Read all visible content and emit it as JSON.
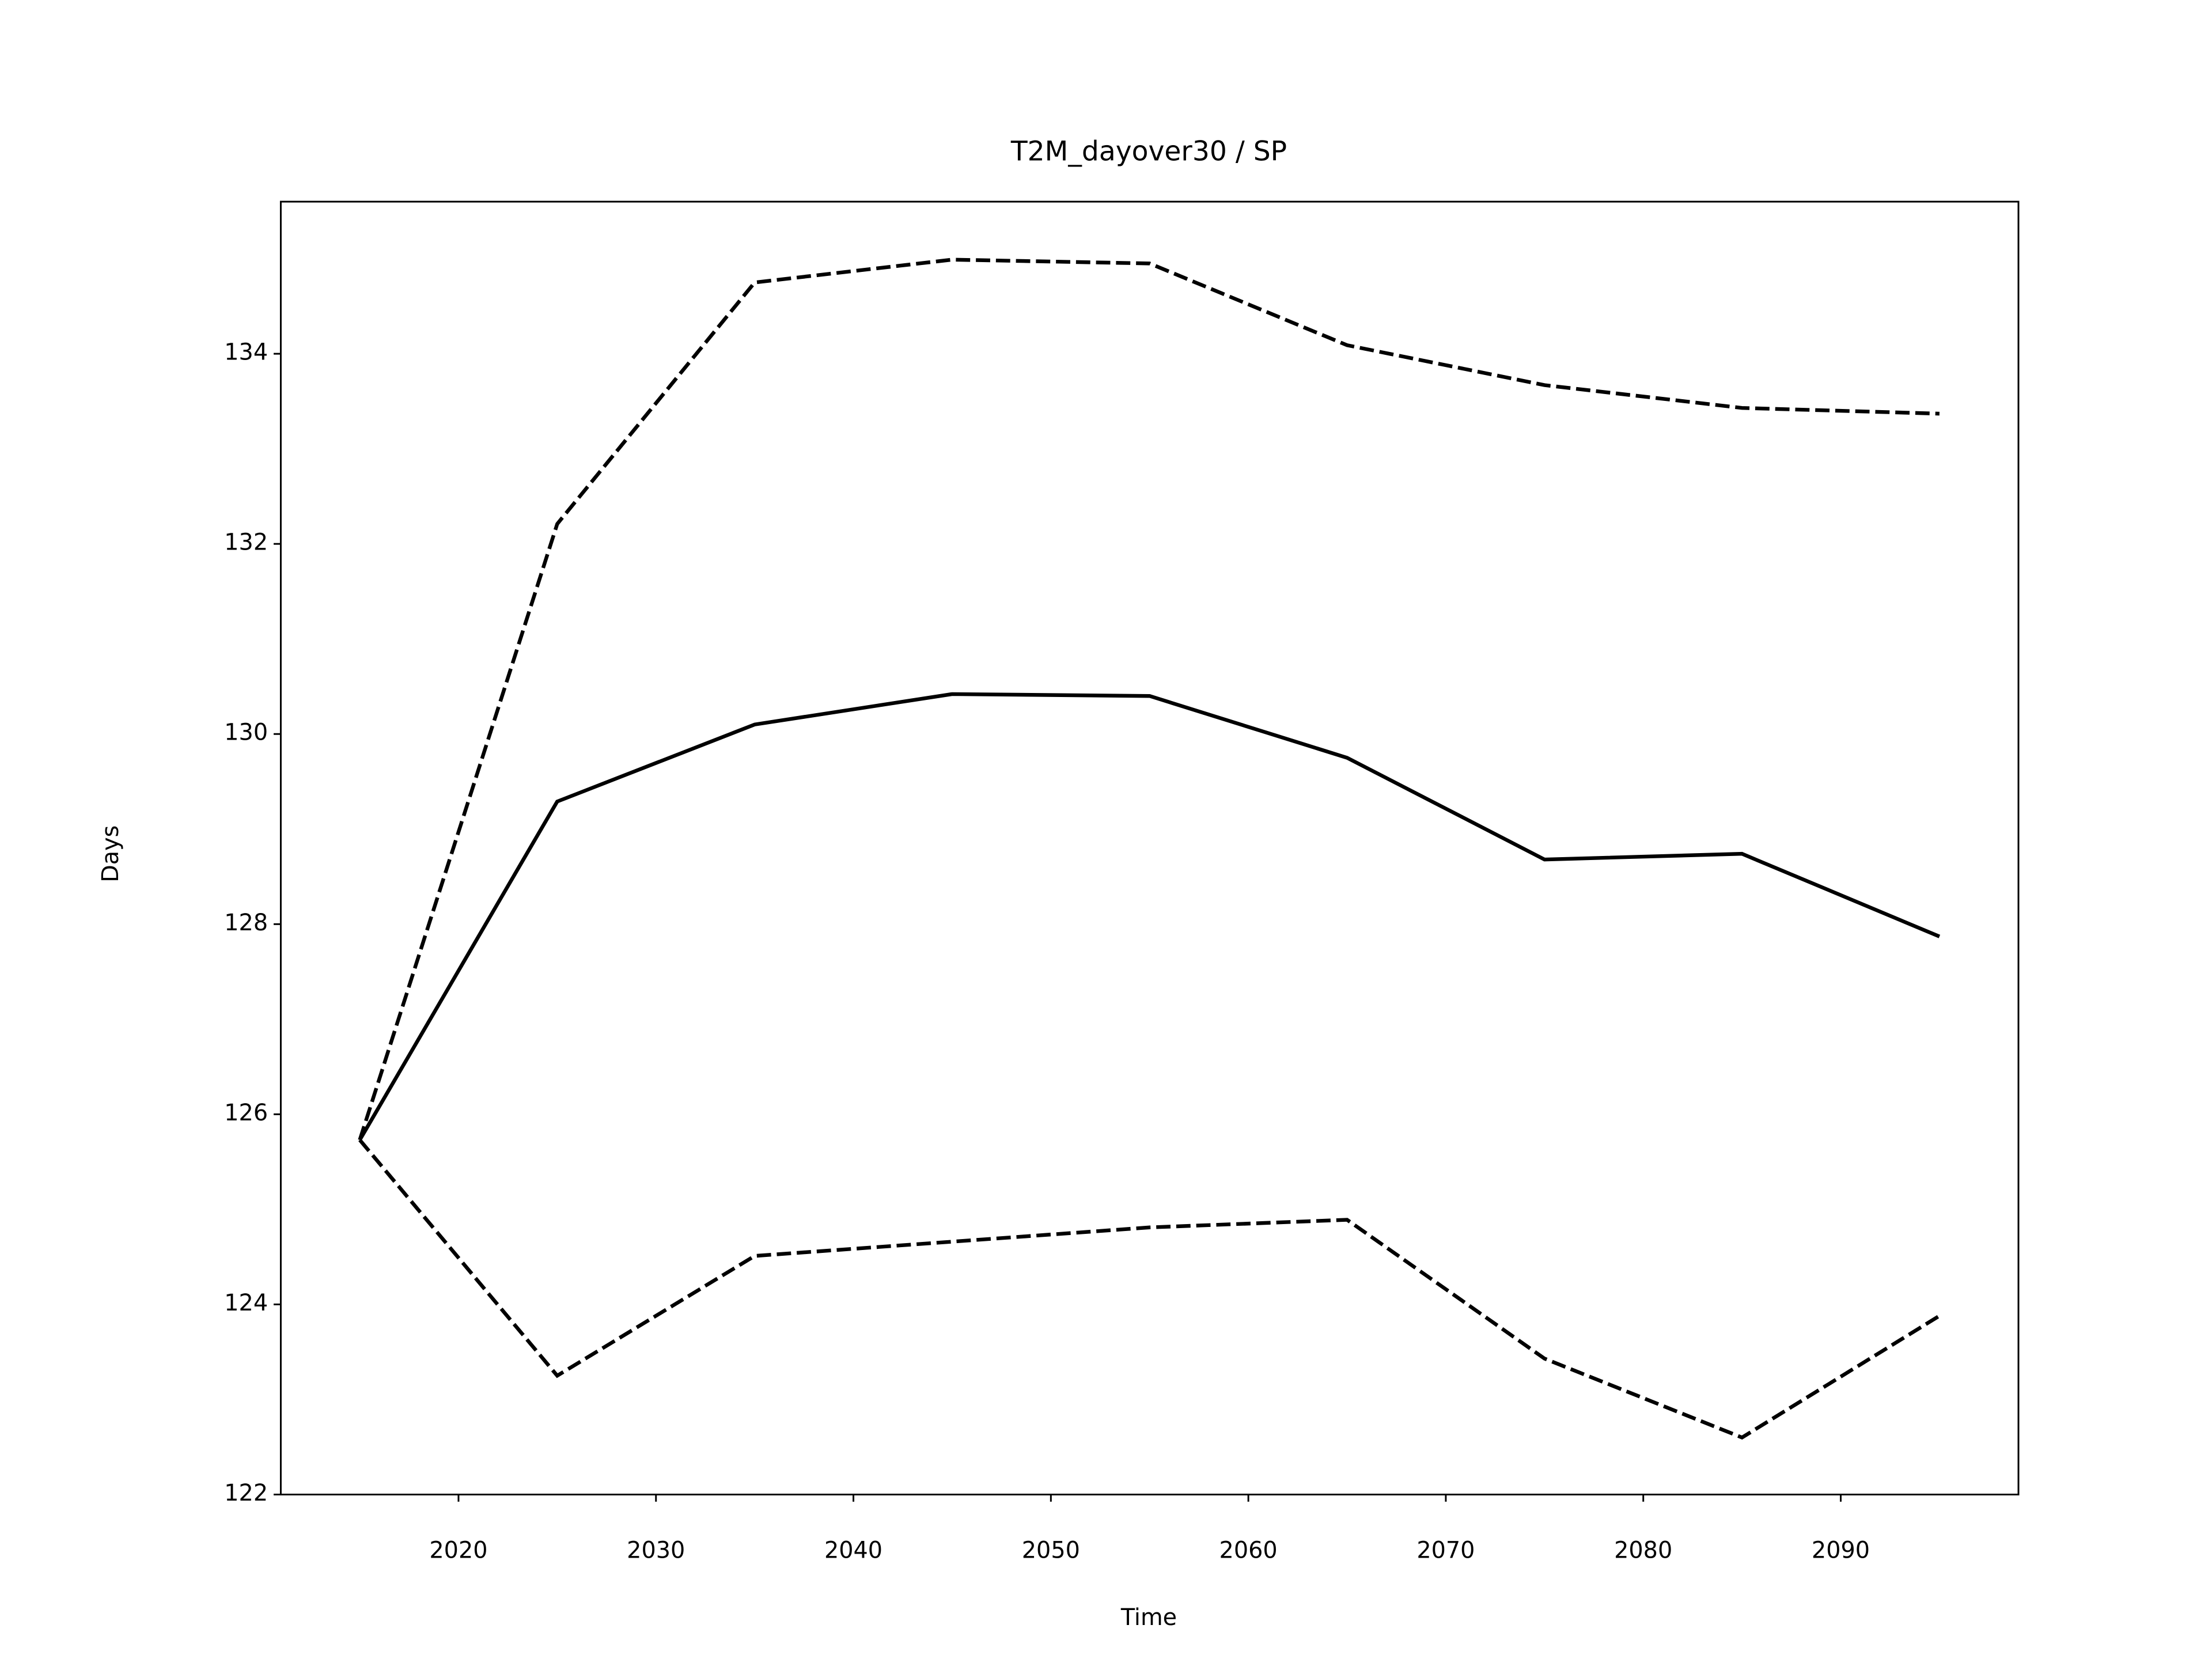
{
  "chart_data": {
    "type": "line",
    "title": "T2M_dayover30 / SP",
    "x_label": "Time",
    "y_label": "Days",
    "x": [
      2015,
      2025,
      2035,
      2045,
      2055,
      2065,
      2075,
      2085,
      2095
    ],
    "series": [
      {
        "color": "#000000",
        "dashed": false,
        "values": [
          125.73,
          129.29,
          130.1,
          130.42,
          130.4,
          129.75,
          128.68,
          128.74,
          127.87
        ]
      },
      {
        "color": "#000000",
        "dashed": true,
        "values": [
          125.73,
          132.21,
          134.75,
          134.99,
          134.95,
          134.09,
          133.67,
          133.43,
          133.37
        ]
      },
      {
        "color": "#000000",
        "dashed": true,
        "values": [
          125.73,
          123.25,
          124.51,
          124.66,
          124.81,
          124.89,
          123.43,
          122.6,
          123.88
        ]
      }
    ],
    "xlim": [
      2011,
      2099
    ],
    "xticks": [
      2020,
      2030,
      2040,
      2050,
      2060,
      2070,
      2080,
      2090
    ],
    "ylim": [
      122,
      135.6
    ],
    "yticks": [
      122,
      124,
      126,
      128,
      130,
      132,
      134
    ],
    "grid": false
  }
}
